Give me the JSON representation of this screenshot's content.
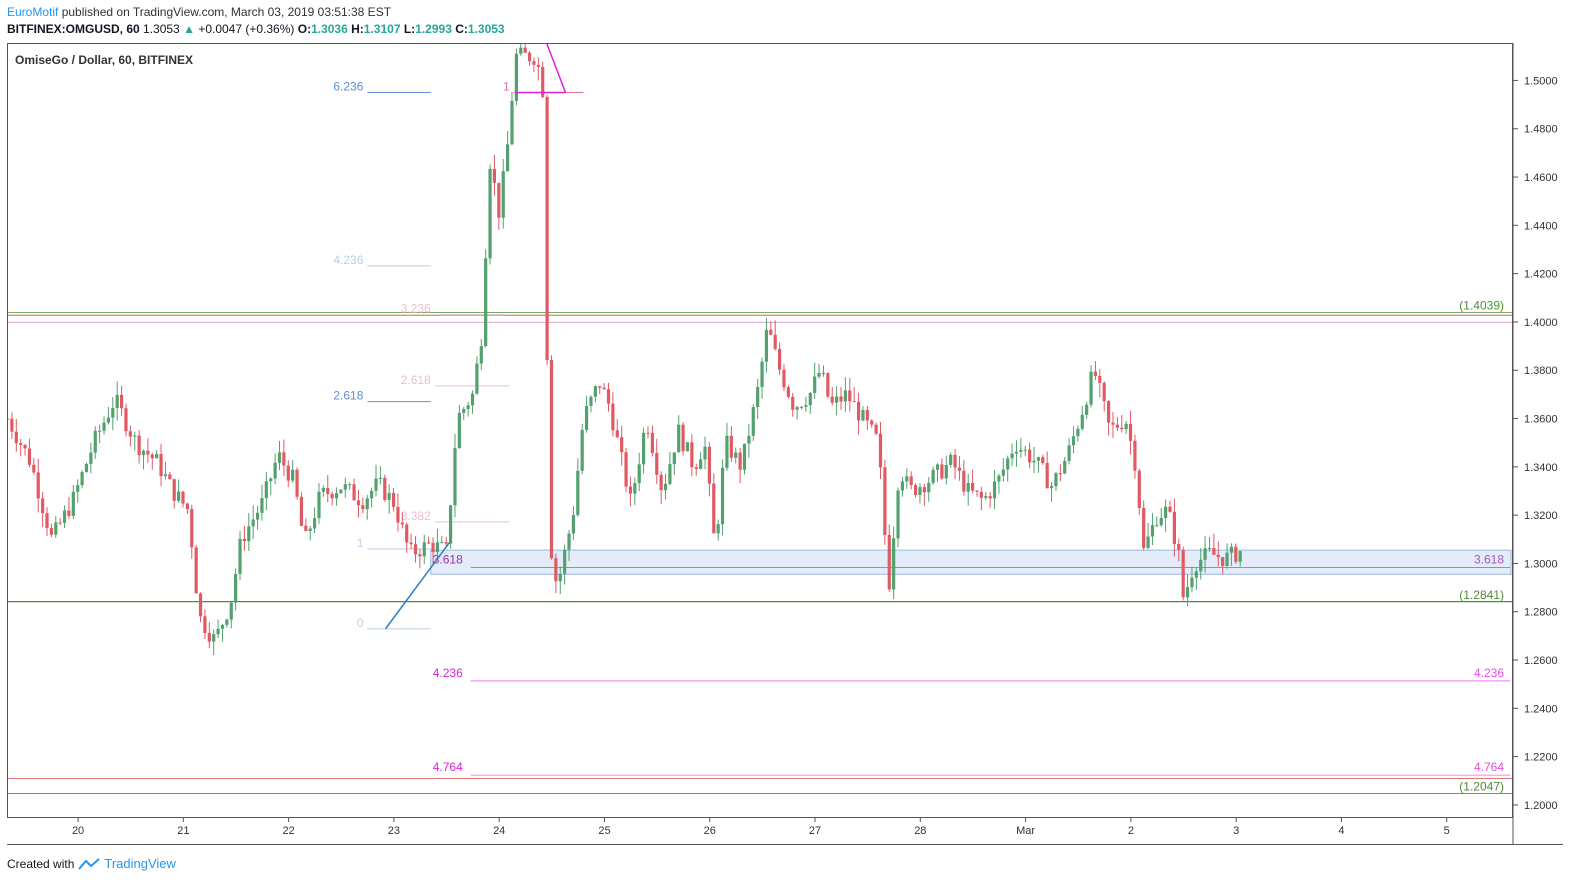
{
  "header": {
    "author": "EuroMotif",
    "published_text": "published on TradingView.com, March 03, 2019 03:51:38 EST",
    "symbol": "BITFINEX:OMGUSD, 60",
    "last": "1.3053",
    "change": "+0.0047 (+0.36%)",
    "o_label": "O:",
    "o_value": "1.3036",
    "h_label": "H:",
    "h_value": "1.3107",
    "l_label": "L:",
    "l_value": "1.2993",
    "c_label": "C:",
    "c_value": "1.3053"
  },
  "footer": {
    "created_with": "Created with",
    "brand": "TradingView"
  },
  "colors": {
    "up": "#53a16e",
    "down": "#e05a63",
    "axis": "#555555",
    "blue_line": "#2f7fc1",
    "magenta": "#e020e0"
  },
  "chart_data": {
    "type": "candlestick",
    "title": "OmiseGo / Dollar, 60, BITFINEX",
    "y_axis": {
      "min": 1.195,
      "max": 1.5155,
      "ticks": [
        "1.5000",
        "1.4800",
        "1.4600",
        "1.4400",
        "1.4200",
        "1.4000",
        "1.3800",
        "1.3600",
        "1.3400",
        "1.3200",
        "1.3000",
        "1.2800",
        "1.2600",
        "1.2400",
        "1.2200",
        "1.2000"
      ]
    },
    "x_axis": {
      "labels": [
        {
          "text": "20",
          "day": 1
        },
        {
          "text": "21",
          "day": 2
        },
        {
          "text": "22",
          "day": 3
        },
        {
          "text": "23",
          "day": 4
        },
        {
          "text": "24",
          "day": 5
        },
        {
          "text": "25",
          "day": 6
        },
        {
          "text": "26",
          "day": 7
        },
        {
          "text": "27",
          "day": 8
        },
        {
          "text": "28",
          "day": 9
        },
        {
          "text": "Mar",
          "day": 10
        },
        {
          "text": "2",
          "day": 11
        },
        {
          "text": "3",
          "day": 12
        },
        {
          "text": "4",
          "day": 13
        },
        {
          "text": "5",
          "day": 14
        }
      ]
    },
    "x_range_days": [
      0.325,
      14.62
    ],
    "zone": {
      "from": 1.2955,
      "to": 1.3055
    },
    "hlines": [
      {
        "price": 1.4028,
        "color": "#d44646",
        "label": "",
        "width": 0.8
      },
      {
        "price": 1.4039,
        "color": "#4d8c35",
        "label": "(1.4039)",
        "label_color": "#4d8c35",
        "width": 0.8
      },
      {
        "price": 1.3998,
        "color": "#d7a8cc",
        "label": "",
        "width": 1
      },
      {
        "price": 1.2841,
        "color": "#4d8c35",
        "label": "(1.2841)",
        "label_color": "#4d8c35",
        "width": 0.8
      },
      {
        "price": 1.2843,
        "color": "#d44646",
        "label": "",
        "width": 0.8
      },
      {
        "price": 1.211,
        "color": "#d44646",
        "label": "",
        "width": 0.8
      },
      {
        "price": 1.2047,
        "color": "#4d8c35",
        "label": "(1.2047)",
        "label_color": "#4d8c35",
        "width": 0.8
      }
    ],
    "fib_levels": [
      {
        "label": "6.236",
        "price": 1.495,
        "color": "#5f8fd1",
        "day_from": 3.71,
        "day_to": 4.35
      },
      {
        "label": "4.236",
        "price": 1.4232,
        "color": "#b8cee8",
        "day_from": 3.71,
        "day_to": 4.35
      },
      {
        "label": "2.618",
        "price": 1.367,
        "color": "#5f8fd1",
        "day_from": 3.71,
        "day_to": 4.35
      },
      {
        "label": "1",
        "price": 1.306,
        "color": "#b8cee8",
        "day_from": 3.71,
        "day_to": 4.35
      },
      {
        "label": "0",
        "price": 1.2729,
        "color": "#b8cee8",
        "day_from": 3.71,
        "day_to": 4.35
      },
      {
        "label": "3.236",
        "price": 1.403,
        "color": "#ecc0d0",
        "day_from": 4.35,
        "day_to": 5.1
      },
      {
        "label": "2.618",
        "price": 1.3735,
        "color": "#ecc0d0",
        "day_from": 4.35,
        "day_to": 5.1
      },
      {
        "label": "3.382",
        "price": 1.3172,
        "color": "#ecc0d0",
        "day_from": 4.35,
        "day_to": 5.1
      },
      {
        "label": "1",
        "price": 1.495,
        "color": "#e36fb0",
        "day_from": 5.1,
        "day_to": 5.8
      }
    ],
    "ext_levels": [
      {
        "label": "3.618",
        "price": 1.3,
        "color": "#9c2fb0",
        "label_left": "3.618",
        "label_right": "3.618"
      },
      {
        "label": "4.236",
        "price": 1.253,
        "color": "#e020e0",
        "label_left": "4.236",
        "label_right": "4.236"
      },
      {
        "label": "4.764",
        "price": 1.214,
        "color": "#e020e0",
        "label_left": "4.764",
        "label_right": "4.764"
      }
    ],
    "trend_lines": [
      {
        "color": "#2f7fc1",
        "from": {
          "day": 3.92,
          "price": 1.2729
        },
        "to": {
          "day": 4.53,
          "price": 1.3088
        }
      },
      {
        "color": "#e020e0",
        "from": {
          "day": 5.45,
          "price": 1.5155
        },
        "to": {
          "day": 5.63,
          "price": 1.495
        }
      },
      {
        "color": "#e020e0",
        "from": {
          "day": 5.15,
          "price": 1.495
        },
        "to": {
          "day": 5.63,
          "price": 1.495
        }
      }
    ],
    "anchors": [
      {
        "day": 0.33,
        "price": 1.36
      },
      {
        "day": 0.55,
        "price": 1.342
      },
      {
        "day": 0.75,
        "price": 1.31
      },
      {
        "day": 0.95,
        "price": 1.326
      },
      {
        "day": 1.15,
        "price": 1.35
      },
      {
        "day": 1.35,
        "price": 1.368
      },
      {
        "day": 1.55,
        "price": 1.35
      },
      {
        "day": 1.75,
        "price": 1.342
      },
      {
        "day": 1.9,
        "price": 1.33
      },
      {
        "day": 2.05,
        "price": 1.322
      },
      {
        "day": 2.15,
        "price": 1.278
      },
      {
        "day": 2.3,
        "price": 1.268
      },
      {
        "day": 2.45,
        "price": 1.284
      },
      {
        "day": 2.55,
        "price": 1.31
      },
      {
        "day": 2.75,
        "price": 1.325
      },
      {
        "day": 2.9,
        "price": 1.345
      },
      {
        "day": 3.05,
        "price": 1.334
      },
      {
        "day": 3.15,
        "price": 1.308
      },
      {
        "day": 3.3,
        "price": 1.328
      },
      {
        "day": 3.5,
        "price": 1.332
      },
      {
        "day": 3.7,
        "price": 1.326
      },
      {
        "day": 3.85,
        "price": 1.333
      },
      {
        "day": 4.0,
        "price": 1.325
      },
      {
        "day": 4.15,
        "price": 1.304
      },
      {
        "day": 4.35,
        "price": 1.308
      },
      {
        "day": 4.5,
        "price": 1.305
      },
      {
        "day": 4.6,
        "price": 1.36
      },
      {
        "day": 4.75,
        "price": 1.37
      },
      {
        "day": 4.85,
        "price": 1.4
      },
      {
        "day": 4.9,
        "price": 1.47
      },
      {
        "day": 5.0,
        "price": 1.445
      },
      {
        "day": 5.1,
        "price": 1.48
      },
      {
        "day": 5.15,
        "price": 1.51
      },
      {
        "day": 5.35,
        "price": 1.51
      },
      {
        "day": 5.42,
        "price": 1.495
      },
      {
        "day": 5.48,
        "price": 1.31
      },
      {
        "day": 5.55,
        "price": 1.29
      },
      {
        "day": 5.7,
        "price": 1.32
      },
      {
        "day": 5.8,
        "price": 1.36
      },
      {
        "day": 5.95,
        "price": 1.375
      },
      {
        "day": 6.05,
        "price": 1.365
      },
      {
        "day": 6.15,
        "price": 1.345
      },
      {
        "day": 6.25,
        "price": 1.325
      },
      {
        "day": 6.4,
        "price": 1.36
      },
      {
        "day": 6.55,
        "price": 1.33
      },
      {
        "day": 6.7,
        "price": 1.355
      },
      {
        "day": 6.85,
        "price": 1.34
      },
      {
        "day": 6.95,
        "price": 1.35
      },
      {
        "day": 7.05,
        "price": 1.306
      },
      {
        "day": 7.15,
        "price": 1.35
      },
      {
        "day": 7.3,
        "price": 1.34
      },
      {
        "day": 7.45,
        "price": 1.37
      },
      {
        "day": 7.55,
        "price": 1.398
      },
      {
        "day": 7.65,
        "price": 1.382
      },
      {
        "day": 7.8,
        "price": 1.365
      },
      {
        "day": 7.95,
        "price": 1.37
      },
      {
        "day": 8.05,
        "price": 1.38
      },
      {
        "day": 8.15,
        "price": 1.365
      },
      {
        "day": 8.3,
        "price": 1.37
      },
      {
        "day": 8.45,
        "price": 1.36
      },
      {
        "day": 8.6,
        "price": 1.35
      },
      {
        "day": 8.7,
        "price": 1.29
      },
      {
        "day": 8.8,
        "price": 1.34
      },
      {
        "day": 8.9,
        "price": 1.33
      },
      {
        "day": 9.1,
        "price": 1.335
      },
      {
        "day": 9.3,
        "price": 1.342
      },
      {
        "day": 9.45,
        "price": 1.33
      },
      {
        "day": 9.6,
        "price": 1.326
      },
      {
        "day": 9.75,
        "price": 1.335
      },
      {
        "day": 9.9,
        "price": 1.35
      },
      {
        "day": 10.1,
        "price": 1.342
      },
      {
        "day": 10.25,
        "price": 1.332
      },
      {
        "day": 10.4,
        "price": 1.345
      },
      {
        "day": 10.55,
        "price": 1.365
      },
      {
        "day": 10.65,
        "price": 1.38
      },
      {
        "day": 10.8,
        "price": 1.355
      },
      {
        "day": 10.95,
        "price": 1.36
      },
      {
        "day": 11.05,
        "price": 1.34
      },
      {
        "day": 11.12,
        "price": 1.305
      },
      {
        "day": 11.25,
        "price": 1.32
      },
      {
        "day": 11.35,
        "price": 1.322
      },
      {
        "day": 11.45,
        "price": 1.305
      },
      {
        "day": 11.5,
        "price": 1.285
      },
      {
        "day": 11.6,
        "price": 1.3
      },
      {
        "day": 11.75,
        "price": 1.304
      },
      {
        "day": 11.9,
        "price": 1.302
      },
      {
        "day": 12.05,
        "price": 1.3053
      }
    ]
  }
}
